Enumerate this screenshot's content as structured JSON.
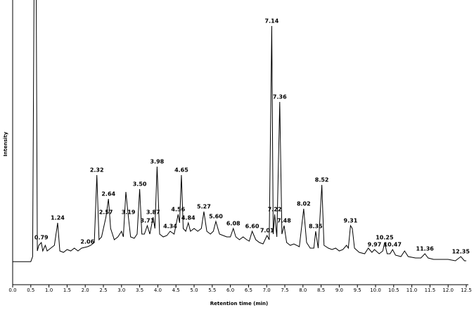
{
  "chart_data": {
    "type": "line",
    "y_label": "Intensity",
    "x_label": "Retention time (min)",
    "xlim": [
      0,
      12.5
    ],
    "ylim": [
      0,
      100
    ],
    "xticks": [
      {
        "value": 0,
        "label": "0.0"
      },
      {
        "value": 0.5,
        "label": "0.5"
      },
      {
        "value": 1,
        "label": "1.0"
      },
      {
        "value": 1.5,
        "label": "1.5"
      },
      {
        "value": 2,
        "label": "2.0"
      },
      {
        "value": 2.5,
        "label": "2.5"
      },
      {
        "value": 3,
        "label": "3.0"
      },
      {
        "value": 3.5,
        "label": "3.5"
      },
      {
        "value": 4,
        "label": "4.0"
      },
      {
        "value": 4.5,
        "label": "4.5"
      },
      {
        "value": 5,
        "label": "5.0"
      },
      {
        "value": 5.5,
        "label": "5.5"
      },
      {
        "value": 6,
        "label": "6.0"
      },
      {
        "value": 6.5,
        "label": "6.5"
      },
      {
        "value": 7,
        "label": "7.0"
      },
      {
        "value": 7.5,
        "label": "7.5"
      },
      {
        "value": 8,
        "label": "8.0"
      },
      {
        "value": 8.5,
        "label": "8.5"
      },
      {
        "value": 9,
        "label": "9.0"
      },
      {
        "value": 9.5,
        "label": "9.5"
      },
      {
        "value": 10,
        "label": "10.0"
      },
      {
        "value": 10.5,
        "label": "10.5"
      },
      {
        "value": 11,
        "label": "11.0"
      },
      {
        "value": 11.5,
        "label": "11.5"
      },
      {
        "value": 12,
        "label": "12.0"
      },
      {
        "value": 12.5,
        "label": "12.5"
      }
    ],
    "x": [
      0,
      0.5,
      0.55,
      0.6,
      0.64,
      0.68,
      0.72,
      0.79,
      0.83,
      0.9,
      0.95,
      1.05,
      1.15,
      1.24,
      1.3,
      1.4,
      1.5,
      1.6,
      1.7,
      1.8,
      1.9,
      2.06,
      2.15,
      2.25,
      2.32,
      2.38,
      2.45,
      2.57,
      2.64,
      2.7,
      2.8,
      2.9,
      3.0,
      3.05,
      3.12,
      3.19,
      3.25,
      3.35,
      3.43,
      3.5,
      3.56,
      3.63,
      3.71,
      3.78,
      3.87,
      3.92,
      3.98,
      4.05,
      4.15,
      4.25,
      4.34,
      4.45,
      4.56,
      4.6,
      4.65,
      4.7,
      4.77,
      4.84,
      4.9,
      5.0,
      5.1,
      5.2,
      5.27,
      5.35,
      5.45,
      5.53,
      5.6,
      5.7,
      5.8,
      5.9,
      6.0,
      6.08,
      6.15,
      6.25,
      6.35,
      6.45,
      6.52,
      6.6,
      6.7,
      6.8,
      6.9,
      7.01,
      7.07,
      7.14,
      7.18,
      7.22,
      7.28,
      7.36,
      7.42,
      7.48,
      7.55,
      7.65,
      7.75,
      7.9,
      8.02,
      8.1,
      8.2,
      8.3,
      8.35,
      8.42,
      8.52,
      8.58,
      8.7,
      8.8,
      8.9,
      9.0,
      9.1,
      9.2,
      9.25,
      9.31,
      9.36,
      9.42,
      9.55,
      9.7,
      9.8,
      9.9,
      9.97,
      10.1,
      10.2,
      10.25,
      10.32,
      10.4,
      10.47,
      10.55,
      10.7,
      10.8,
      10.9,
      11.1,
      11.25,
      11.36,
      11.45,
      11.6,
      11.8,
      12.0,
      12.2,
      12.35,
      12.45,
      12.5
    ],
    "series": [
      {
        "color": "#000000",
        "values": [
          8.2,
          8.2,
          10,
          130,
          130,
          12,
          14,
          15,
          12,
          14,
          12,
          13,
          14,
          22,
          12,
          11.5,
          12.5,
          12,
          13,
          12,
          13,
          13.5,
          14,
          15,
          39,
          16,
          17,
          24,
          30.5,
          20,
          16,
          17,
          19,
          17,
          33,
          24,
          17,
          16.5,
          18,
          34,
          18,
          18,
          21,
          18,
          24,
          20,
          42,
          18,
          17,
          17.5,
          19,
          18,
          25,
          22,
          39,
          20,
          19,
          22,
          19,
          20,
          19,
          20,
          26,
          19,
          18,
          19,
          22.5,
          18,
          17.5,
          17,
          17,
          20,
          17,
          16,
          17,
          16,
          15.5,
          19,
          16,
          15,
          14.5,
          17.5,
          16,
          92,
          18,
          25,
          17,
          65,
          18,
          21,
          15,
          14,
          14.5,
          13.5,
          27,
          15,
          13,
          13,
          19,
          13,
          35.5,
          14,
          13,
          12.5,
          13,
          12,
          12.5,
          14,
          13,
          21,
          20,
          13,
          11.5,
          11,
          13,
          11.5,
          12.5,
          11,
          12,
          15,
          11,
          11,
          12.5,
          10.5,
          10,
          12,
          10,
          9.5,
          9.5,
          11,
          9.5,
          9,
          9,
          9,
          8.5,
          10,
          8.5,
          8.5
        ]
      }
    ],
    "annotations": [
      {
        "x": 0.79,
        "y": 15,
        "label": "0.79"
      },
      {
        "x": 1.24,
        "y": 22,
        "label": "1.24"
      },
      {
        "x": 2.06,
        "y": 13.5,
        "label": "2.06"
      },
      {
        "x": 2.32,
        "y": 39,
        "label": "2.32"
      },
      {
        "x": 2.57,
        "y": 24,
        "label": "2.57"
      },
      {
        "x": 2.64,
        "y": 30.5,
        "label": "2.64"
      },
      {
        "x": 3.19,
        "y": 24,
        "label": "3.19"
      },
      {
        "x": 3.5,
        "y": 34,
        "label": "3.50"
      },
      {
        "x": 3.71,
        "y": 21,
        "label": "3.71"
      },
      {
        "x": 3.87,
        "y": 24,
        "label": "3.87"
      },
      {
        "x": 3.98,
        "y": 42,
        "label": "3.98"
      },
      {
        "x": 4.34,
        "y": 19,
        "label": "4.34"
      },
      {
        "x": 4.56,
        "y": 25,
        "label": "4.56"
      },
      {
        "x": 4.65,
        "y": 39,
        "label": "4.65"
      },
      {
        "x": 4.84,
        "y": 22,
        "label": "4.84"
      },
      {
        "x": 5.27,
        "y": 26,
        "label": "5.27"
      },
      {
        "x": 5.6,
        "y": 22.5,
        "label": "5.60"
      },
      {
        "x": 6.08,
        "y": 20,
        "label": "6.08"
      },
      {
        "x": 6.6,
        "y": 19,
        "label": "6.60"
      },
      {
        "x": 7.01,
        "y": 17.5,
        "label": "7.01"
      },
      {
        "x": 7.14,
        "y": 92,
        "label": "7.14"
      },
      {
        "x": 7.22,
        "y": 25,
        "label": "7.22"
      },
      {
        "x": 7.36,
        "y": 65,
        "label": "7.36"
      },
      {
        "x": 7.48,
        "y": 21,
        "label": "7.48"
      },
      {
        "x": 8.02,
        "y": 27,
        "label": "8.02"
      },
      {
        "x": 8.35,
        "y": 19,
        "label": "8.35"
      },
      {
        "x": 8.52,
        "y": 35.5,
        "label": "8.52"
      },
      {
        "x": 9.31,
        "y": 21,
        "label": "9.31"
      },
      {
        "x": 9.97,
        "y": 12.5,
        "label": "9.97"
      },
      {
        "x": 10.25,
        "y": 15,
        "label": "10.25"
      },
      {
        "x": 10.47,
        "y": 12.5,
        "label": "10.47"
      },
      {
        "x": 11.36,
        "y": 11,
        "label": "11.36"
      },
      {
        "x": 12.35,
        "y": 10,
        "label": "12.35"
      }
    ]
  }
}
